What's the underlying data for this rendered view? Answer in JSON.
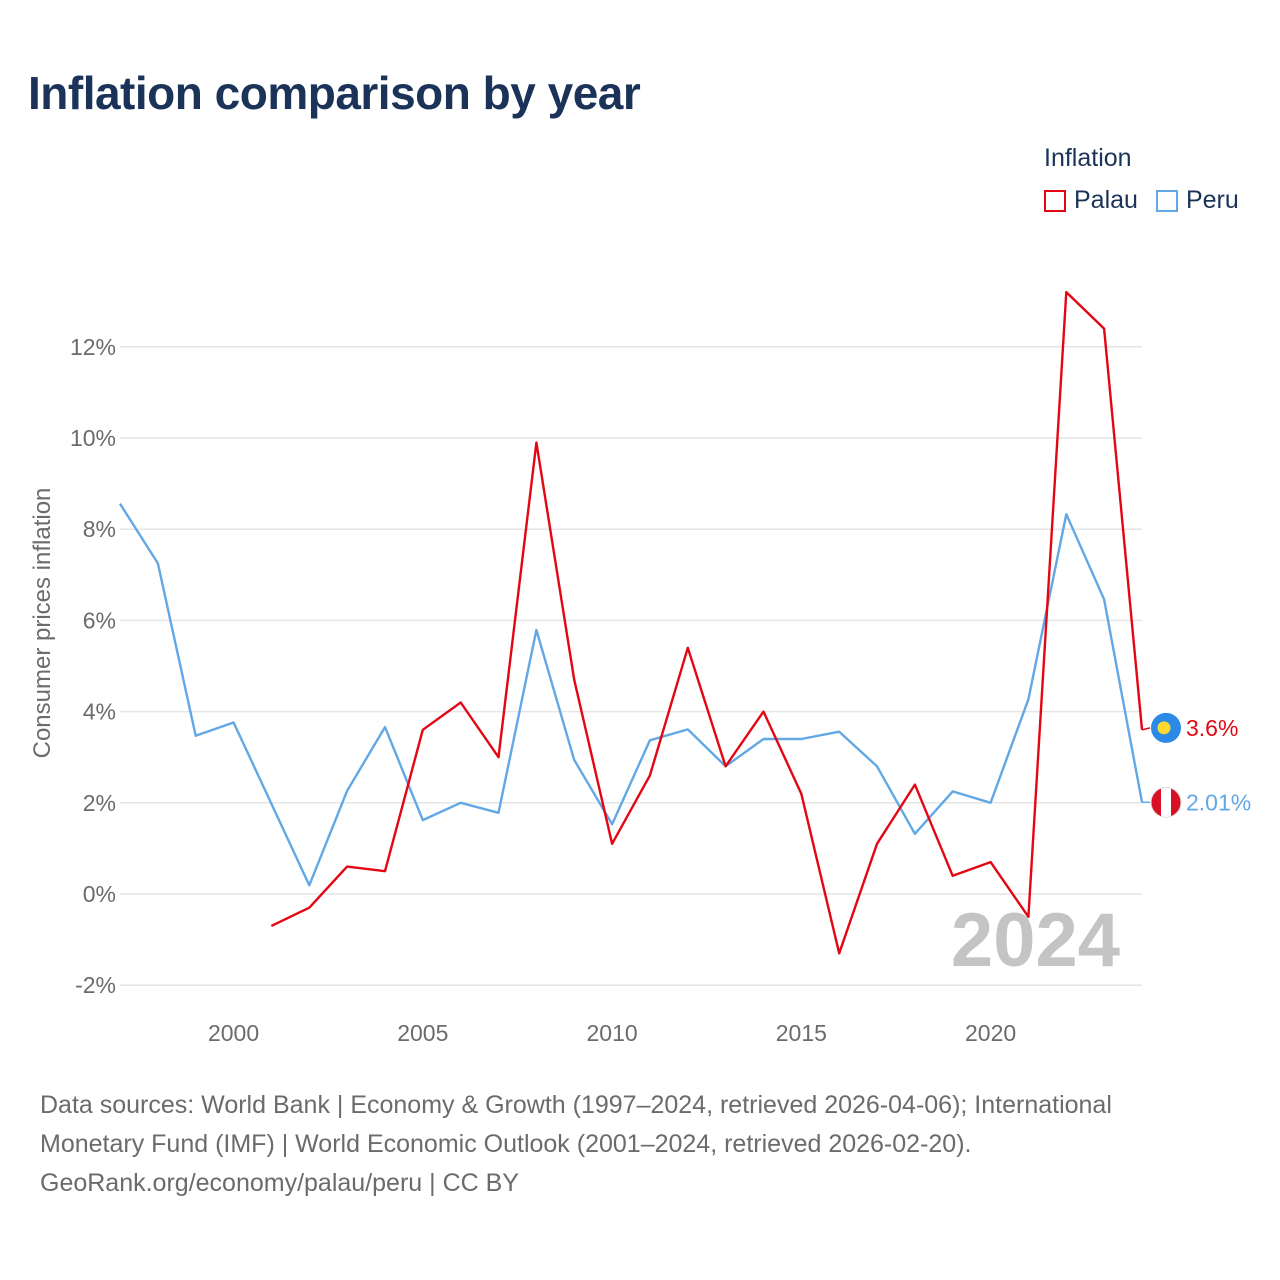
{
  "title": "Inflation comparison by year",
  "legend": {
    "title": "Inflation",
    "items": [
      {
        "label": "Palau",
        "color": "#e30613"
      },
      {
        "label": "Peru",
        "color": "#62a8e5"
      }
    ]
  },
  "chart_data": {
    "type": "line",
    "ylabel": "Consumer prices inflation",
    "xlabel": "",
    "xlim": [
      1997,
      2024
    ],
    "ylim": [
      -2.2,
      13.2
    ],
    "yticks": [
      -2,
      0,
      2,
      4,
      6,
      8,
      10,
      12
    ],
    "ytick_labels": [
      "-2%",
      "0%",
      "2%",
      "4%",
      "6%",
      "8%",
      "10%",
      "12%"
    ],
    "xticks": [
      2000,
      2005,
      2010,
      2015,
      2020
    ],
    "xtick_labels": [
      "2000",
      "2005",
      "2010",
      "2015",
      "2020"
    ],
    "year_watermark": "2024",
    "series": [
      {
        "name": "Palau",
        "color": "#e30613",
        "end_label": "3.6%",
        "flag_icon": "palau-flag-icon",
        "x": [
          2001,
          2002,
          2003,
          2004,
          2005,
          2006,
          2007,
          2008,
          2009,
          2010,
          2011,
          2012,
          2013,
          2014,
          2015,
          2016,
          2017,
          2018,
          2019,
          2020,
          2021,
          2022,
          2023,
          2024
        ],
        "values": [
          -0.7,
          -0.3,
          0.6,
          0.5,
          3.6,
          4.2,
          3.0,
          9.9,
          4.7,
          1.1,
          2.6,
          5.4,
          2.8,
          4.0,
          2.2,
          -1.3,
          1.1,
          2.4,
          0.4,
          0.7,
          -0.5,
          13.2,
          12.4,
          3.6
        ]
      },
      {
        "name": "Peru",
        "color": "#62a8e5",
        "end_label": "2.01%",
        "flag_icon": "peru-flag-icon",
        "x": [
          1997,
          1998,
          1999,
          2000,
          2001,
          2002,
          2003,
          2004,
          2005,
          2006,
          2007,
          2008,
          2009,
          2010,
          2011,
          2012,
          2013,
          2014,
          2015,
          2016,
          2017,
          2018,
          2019,
          2020,
          2021,
          2022,
          2023,
          2024
        ],
        "values": [
          8.56,
          7.25,
          3.47,
          3.76,
          1.98,
          0.19,
          2.26,
          3.66,
          1.62,
          2.0,
          1.78,
          5.79,
          2.94,
          1.53,
          3.37,
          3.61,
          2.8,
          3.4,
          3.4,
          3.56,
          2.8,
          1.32,
          2.25,
          2.0,
          4.27,
          8.33,
          6.46,
          2.01
        ]
      }
    ]
  },
  "footer": {
    "line1": "Data sources: World Bank | Economy & Growth (1997–2024, retrieved 2026-04-06); International",
    "line2": "Monetary Fund (IMF) | World Economic Outlook (2001–2024, retrieved 2026-02-20).",
    "line3": "GeoRank.org/economy/palau/peru | CC BY"
  }
}
